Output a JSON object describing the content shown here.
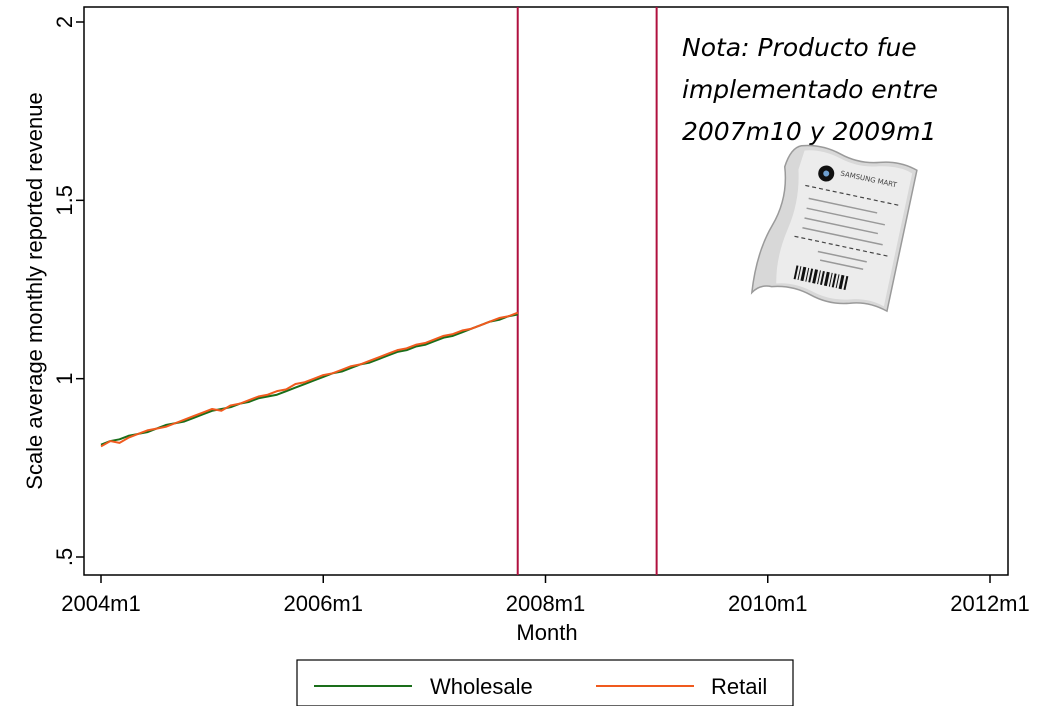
{
  "chart_data": {
    "type": "line",
    "title": "",
    "xlabel": "Month",
    "ylabel": "Scale average monthly reported revenue",
    "xlim": [
      "2004m1",
      "2012m1"
    ],
    "ylim": [
      0.45,
      2.05
    ],
    "x_ticks": [
      "2004m1",
      "2006m1",
      "2008m1",
      "2010m1",
      "2012m1"
    ],
    "y_ticks": [
      {
        "value": 0.5,
        "label": ".5"
      },
      {
        "value": 1,
        "label": "1"
      },
      {
        "value": 1.5,
        "label": "1.5"
      },
      {
        "value": 2,
        "label": "2"
      }
    ],
    "grid": false,
    "vertical_lines": [
      {
        "x": "2007m10",
        "color": "#b0103f"
      },
      {
        "x": "2009m1",
        "color": "#b0103f"
      }
    ],
    "series": [
      {
        "name": "Wholesale",
        "color": "#1a6e1a",
        "x": [
          "2004m1",
          "2004m2",
          "2004m3",
          "2004m4",
          "2004m5",
          "2004m6",
          "2004m7",
          "2004m8",
          "2004m9",
          "2004m10",
          "2004m11",
          "2004m12",
          "2005m1",
          "2005m2",
          "2005m3",
          "2005m4",
          "2005m5",
          "2005m6",
          "2005m7",
          "2005m8",
          "2005m9",
          "2005m10",
          "2005m11",
          "2005m12",
          "2006m1",
          "2006m2",
          "2006m3",
          "2006m4",
          "2006m5",
          "2006m6",
          "2006m7",
          "2006m8",
          "2006m9",
          "2006m10",
          "2006m11",
          "2006m12",
          "2007m1",
          "2007m2",
          "2007m3",
          "2007m4",
          "2007m5",
          "2007m6",
          "2007m7",
          "2007m8",
          "2007m9",
          "2007m10"
        ],
        "values": [
          0.815,
          0.825,
          0.83,
          0.84,
          0.845,
          0.85,
          0.86,
          0.87,
          0.875,
          0.88,
          0.89,
          0.9,
          0.91,
          0.915,
          0.92,
          0.93,
          0.935,
          0.945,
          0.95,
          0.955,
          0.965,
          0.975,
          0.985,
          0.995,
          1.005,
          1.015,
          1.02,
          1.03,
          1.04,
          1.045,
          1.055,
          1.065,
          1.075,
          1.08,
          1.09,
          1.095,
          1.105,
          1.115,
          1.12,
          1.13,
          1.14,
          1.15,
          1.16,
          1.165,
          1.175,
          1.18
        ]
      },
      {
        "name": "Retail",
        "color": "#f05a1e",
        "x": [
          "2004m1",
          "2004m2",
          "2004m3",
          "2004m4",
          "2004m5",
          "2004m6",
          "2004m7",
          "2004m8",
          "2004m9",
          "2004m10",
          "2004m11",
          "2004m12",
          "2005m1",
          "2005m2",
          "2005m3",
          "2005m4",
          "2005m5",
          "2005m6",
          "2005m7",
          "2005m8",
          "2005m9",
          "2005m10",
          "2005m11",
          "2005m12",
          "2006m1",
          "2006m2",
          "2006m3",
          "2006m4",
          "2006m5",
          "2006m6",
          "2006m7",
          "2006m8",
          "2006m9",
          "2006m10",
          "2006m11",
          "2006m12",
          "2007m1",
          "2007m2",
          "2007m3",
          "2007m4",
          "2007m5",
          "2007m6",
          "2007m7",
          "2007m8",
          "2007m9",
          "2007m10"
        ],
        "values": [
          0.81,
          0.825,
          0.82,
          0.835,
          0.845,
          0.855,
          0.86,
          0.865,
          0.875,
          0.885,
          0.895,
          0.905,
          0.915,
          0.91,
          0.925,
          0.93,
          0.94,
          0.95,
          0.955,
          0.965,
          0.97,
          0.985,
          0.99,
          1.0,
          1.01,
          1.015,
          1.025,
          1.035,
          1.04,
          1.05,
          1.06,
          1.07,
          1.08,
          1.085,
          1.095,
          1.1,
          1.11,
          1.12,
          1.125,
          1.135,
          1.14,
          1.15,
          1.16,
          1.17,
          1.175,
          1.185
        ]
      }
    ],
    "legend": {
      "position": "bottom-center",
      "entries": [
        "Wholesale",
        "Retail"
      ]
    },
    "annotation": {
      "lines": [
        "Nota: Producto fue",
        "implementado entre",
        "2007m10 y 2009m1"
      ],
      "position": "top-right"
    }
  },
  "receipt_image": {
    "brand": "SAMSUNG MART",
    "icon": "receipt-icon"
  }
}
